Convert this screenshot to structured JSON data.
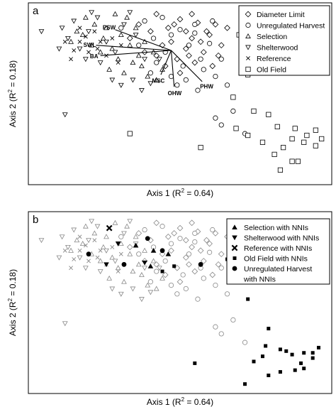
{
  "panels": [
    {
      "letter": "a",
      "xlabel_pre": "Axis 1 (R",
      "xlabel_sup": "2",
      "xlabel_post": " = 0.64)",
      "ylabel_pre": "Axis 2 (R",
      "ylabel_sup": "2",
      "ylabel_post": " = 0.18)",
      "legend": [
        {
          "label": "Diameter Limit",
          "marker": "diamond"
        },
        {
          "label": "Unregulated Harvest",
          "marker": "circle"
        },
        {
          "label": "Selection",
          "marker": "triangle-up"
        },
        {
          "label": "Shelterwood",
          "marker": "triangle-down"
        },
        {
          "label": "Reference",
          "marker": "x"
        },
        {
          "label": "Old Field",
          "marker": "square"
        }
      ],
      "vectors": [
        {
          "label": "PSW",
          "end": [
            0.28,
            0.87
          ]
        },
        {
          "label": "SWL",
          "end": [
            0.215,
            0.78
          ]
        },
        {
          "label": "BA",
          "end": [
            0.23,
            0.72
          ]
        },
        {
          "label": "MSC",
          "end": [
            0.435,
            0.61
          ]
        },
        {
          "label": "OHW",
          "end": [
            0.48,
            0.54
          ]
        },
        {
          "label": "PHW",
          "end": [
            0.575,
            0.57
          ]
        }
      ]
    },
    {
      "letter": "b",
      "xlabel_pre": "Axis 1 (R",
      "xlabel_sup": "2",
      "xlabel_post": " = 0.64)",
      "ylabel_pre": "Axis 2 (R",
      "ylabel_sup": "2",
      "ylabel_post": " = 0.18)",
      "legend": [
        {
          "label": "Selection with NNIs",
          "marker": "triangle-up-filled"
        },
        {
          "label": "Shelterwood with NNIs",
          "marker": "triangle-down-filled"
        },
        {
          "label": "Reference with NNIs",
          "marker": "x-bold"
        },
        {
          "label": "Old Field with NNIs",
          "marker": "square-filled"
        },
        {
          "label": "Unregulated Harvest",
          "marker": "circle-filled"
        },
        {
          "label": "with NNIs",
          "marker": "none"
        }
      ]
    }
  ],
  "chart_data": [
    {
      "type": "scatter",
      "xlabel": "Axis 1 (R2 = 0.64)",
      "ylabel": "Axis 2 (R2 = 0.18)",
      "xlim": [
        0,
        1
      ],
      "ylim": [
        0,
        1
      ],
      "legend_position": "top-right",
      "series": [
        {
          "name": "Diameter Limit",
          "marker": "diamond",
          "points": [
            [
              0.42,
              0.96
            ],
            [
              0.5,
              0.93
            ],
            [
              0.56,
              0.91
            ],
            [
              0.62,
              0.9
            ],
            [
              0.66,
              0.88
            ],
            [
              0.6,
              0.84
            ],
            [
              0.54,
              0.82
            ],
            [
              0.47,
              0.8
            ],
            [
              0.52,
              0.76
            ],
            [
              0.58,
              0.74
            ],
            [
              0.63,
              0.72
            ],
            [
              0.55,
              0.68
            ],
            [
              0.49,
              0.7
            ],
            [
              0.44,
              0.78
            ],
            [
              0.4,
              0.86
            ],
            [
              0.36,
              0.9
            ],
            [
              0.46,
              0.88
            ],
            [
              0.52,
              0.86
            ],
            [
              0.57,
              0.8
            ],
            [
              0.61,
              0.66
            ],
            [
              0.5,
              0.62
            ],
            [
              0.45,
              0.66
            ],
            [
              0.38,
              0.74
            ],
            [
              0.33,
              0.82
            ],
            [
              0.42,
              0.72
            ],
            [
              0.48,
              0.9
            ],
            [
              0.54,
              0.96
            ],
            [
              0.59,
              0.86
            ],
            [
              0.64,
              0.78
            ],
            [
              0.53,
              0.72
            ]
          ]
        },
        {
          "name": "Unregulated Harvest",
          "marker": "circle",
          "points": [
            [
              0.38,
              0.92
            ],
            [
              0.44,
              0.94
            ],
            [
              0.5,
              0.87
            ],
            [
              0.55,
              0.85
            ],
            [
              0.6,
              0.79
            ],
            [
              0.64,
              0.7
            ],
            [
              0.58,
              0.64
            ],
            [
              0.52,
              0.58
            ],
            [
              0.47,
              0.6
            ],
            [
              0.42,
              0.68
            ],
            [
              0.36,
              0.78
            ],
            [
              0.3,
              0.88
            ],
            [
              0.41,
              0.82
            ],
            [
              0.47,
              0.84
            ],
            [
              0.53,
              0.78
            ],
            [
              0.57,
              0.7
            ],
            [
              0.62,
              0.6
            ],
            [
              0.66,
              0.55
            ],
            [
              0.56,
              0.52
            ],
            [
              0.49,
              0.55
            ],
            [
              0.62,
              0.36
            ],
            [
              0.64,
              0.32
            ],
            [
              0.68,
              0.4
            ],
            [
              0.72,
              0.27
            ],
            [
              0.4,
              0.62
            ],
            [
              0.55,
              0.9
            ],
            [
              0.61,
              0.92
            ],
            [
              0.45,
              0.74
            ],
            [
              0.51,
              0.66
            ]
          ]
        },
        {
          "name": "Selection",
          "marker": "triangle-up",
          "points": [
            [
              0.13,
              0.8
            ],
            [
              0.17,
              0.84
            ],
            [
              0.2,
              0.78
            ],
            [
              0.24,
              0.82
            ],
            [
              0.27,
              0.76
            ],
            [
              0.3,
              0.84
            ],
            [
              0.33,
              0.78
            ],
            [
              0.36,
              0.72
            ],
            [
              0.29,
              0.7
            ],
            [
              0.25,
              0.88
            ],
            [
              0.21,
              0.9
            ],
            [
              0.18,
              0.94
            ],
            [
              0.32,
              0.94
            ],
            [
              0.35,
              0.88
            ],
            [
              0.38,
              0.8
            ],
            [
              0.41,
              0.74
            ],
            [
              0.26,
              0.64
            ],
            [
              0.31,
              0.62
            ],
            [
              0.37,
              0.66
            ],
            [
              0.42,
              0.58
            ],
            [
              0.39,
              0.6
            ],
            [
              0.23,
              0.74
            ],
            [
              0.15,
              0.86
            ],
            [
              0.28,
              0.96
            ],
            [
              0.34,
              0.68
            ],
            [
              0.44,
              0.64
            ]
          ]
        },
        {
          "name": "Shelterwood",
          "marker": "triangle-down",
          "points": [
            [
              0.03,
              0.86
            ],
            [
              0.1,
              0.88
            ],
            [
              0.12,
              0.82
            ],
            [
              0.16,
              0.76
            ],
            [
              0.19,
              0.86
            ],
            [
              0.22,
              0.94
            ],
            [
              0.25,
              0.8
            ],
            [
              0.28,
              0.74
            ],
            [
              0.31,
              0.9
            ],
            [
              0.35,
              0.84
            ],
            [
              0.38,
              0.7
            ],
            [
              0.27,
              0.58
            ],
            [
              0.3,
              0.55
            ],
            [
              0.34,
              0.58
            ],
            [
              0.4,
              0.56
            ],
            [
              0.14,
              0.92
            ],
            [
              0.18,
              0.7
            ],
            [
              0.23,
              0.68
            ],
            [
              0.2,
              0.97
            ],
            [
              0.33,
              0.97
            ],
            [
              0.11,
              0.38
            ],
            [
              0.09,
              0.76
            ],
            [
              0.43,
              0.7
            ],
            [
              0.37,
              0.52
            ]
          ]
        },
        {
          "name": "Reference",
          "marker": "x",
          "points": [
            [
              0.11,
              0.8
            ],
            [
              0.14,
              0.75
            ],
            [
              0.16,
              0.8
            ],
            [
              0.18,
              0.83
            ],
            [
              0.21,
              0.86
            ],
            [
              0.23,
              0.8
            ],
            [
              0.25,
              0.72
            ],
            [
              0.13,
              0.7
            ],
            [
              0.19,
              0.74
            ],
            [
              0.27,
              0.82
            ],
            [
              0.3,
              0.78
            ],
            [
              0.22,
              0.76
            ],
            [
              0.16,
              0.88
            ],
            [
              0.29,
              0.68
            ]
          ]
        },
        {
          "name": "Old Field",
          "marker": "square",
          "points": [
            [
              0.7,
              0.84
            ],
            [
              0.75,
              0.76
            ],
            [
              0.73,
              0.61
            ],
            [
              0.68,
              0.48
            ],
            [
              0.75,
              0.4
            ],
            [
              0.83,
              0.31
            ],
            [
              0.8,
              0.38
            ],
            [
              0.89,
              0.3
            ],
            [
              0.93,
              0.26
            ],
            [
              0.96,
              0.29
            ],
            [
              0.98,
              0.24
            ],
            [
              0.96,
              0.2
            ],
            [
              0.92,
              0.22
            ],
            [
              0.88,
              0.24
            ],
            [
              0.85,
              0.19
            ],
            [
              0.82,
              0.15
            ],
            [
              0.78,
              0.22
            ],
            [
              0.73,
              0.26
            ],
            [
              0.69,
              0.3
            ],
            [
              0.88,
              0.11
            ],
            [
              0.9,
              0.11
            ],
            [
              0.84,
              0.06
            ],
            [
              0.33,
              0.27
            ],
            [
              0.57,
              0.19
            ]
          ]
        }
      ],
      "vectors": [
        {
          "label": "PSW",
          "end": [
            0.28,
            0.87
          ]
        },
        {
          "label": "SWL",
          "end": [
            0.215,
            0.78
          ]
        },
        {
          "label": "BA",
          "end": [
            0.23,
            0.72
          ]
        },
        {
          "label": "MSC",
          "end": [
            0.435,
            0.61
          ]
        },
        {
          "label": "OHW",
          "end": [
            0.48,
            0.54
          ]
        },
        {
          "label": "PHW",
          "end": [
            0.575,
            0.57
          ]
        }
      ],
      "vector_origin": [
        0.47,
        0.75
      ]
    },
    {
      "type": "scatter",
      "xlabel": "Axis 1 (R2 = 0.64)",
      "ylabel": "Axis 2 (R2 = 0.18)",
      "xlim": [
        0,
        1
      ],
      "ylim": [
        0,
        1
      ],
      "legend_position": "top-right",
      "background_points_note": "all sites in gray outline markers",
      "series": [
        {
          "name": "Selection with NNIs",
          "marker": "triangle-up-filled",
          "points": [
            [
              0.35,
              0.83
            ],
            [
              0.41,
              0.8
            ],
            [
              0.46,
              0.78
            ],
            [
              0.4,
              0.71
            ]
          ]
        },
        {
          "name": "Shelterwood with NNIs",
          "marker": "triangle-down-filled",
          "points": [
            [
              0.29,
              0.84
            ],
            [
              0.38,
              0.73
            ],
            [
              0.25,
              0.72
            ]
          ]
        },
        {
          "name": "Reference with NNIs",
          "marker": "x-bold",
          "points": [
            [
              0.26,
              0.93
            ]
          ]
        },
        {
          "name": "Old Field with NNIs",
          "marker": "square-filled",
          "points": [
            [
              0.7,
              0.88
            ],
            [
              0.76,
              0.84
            ],
            [
              0.72,
              0.77
            ],
            [
              0.75,
              0.68
            ],
            [
              0.48,
              0.71
            ],
            [
              0.44,
              0.68
            ],
            [
              0.66,
              0.75
            ],
            [
              0.68,
              0.62
            ],
            [
              0.73,
              0.52
            ],
            [
              0.8,
              0.35
            ],
            [
              0.79,
              0.25
            ],
            [
              0.78,
              0.19
            ],
            [
              0.84,
              0.23
            ],
            [
              0.86,
              0.22
            ],
            [
              0.88,
              0.2
            ],
            [
              0.92,
              0.21
            ],
            [
              0.95,
              0.21
            ],
            [
              0.97,
              0.24
            ],
            [
              0.95,
              0.18
            ],
            [
              0.91,
              0.15
            ],
            [
              0.89,
              0.11
            ],
            [
              0.84,
              0.1
            ],
            [
              0.8,
              0.08
            ],
            [
              0.75,
              0.16
            ],
            [
              0.92,
              0.12
            ],
            [
              0.72,
              0.03
            ],
            [
              0.55,
              0.15
            ]
          ]
        },
        {
          "name": "Unregulated Harvest with NNIs",
          "marker": "circle-filled",
          "points": [
            [
              0.39,
              0.87
            ],
            [
              0.31,
              0.72
            ],
            [
              0.57,
              0.72
            ],
            [
              0.19,
              0.78
            ],
            [
              0.44,
              0.8
            ]
          ]
        }
      ]
    }
  ]
}
